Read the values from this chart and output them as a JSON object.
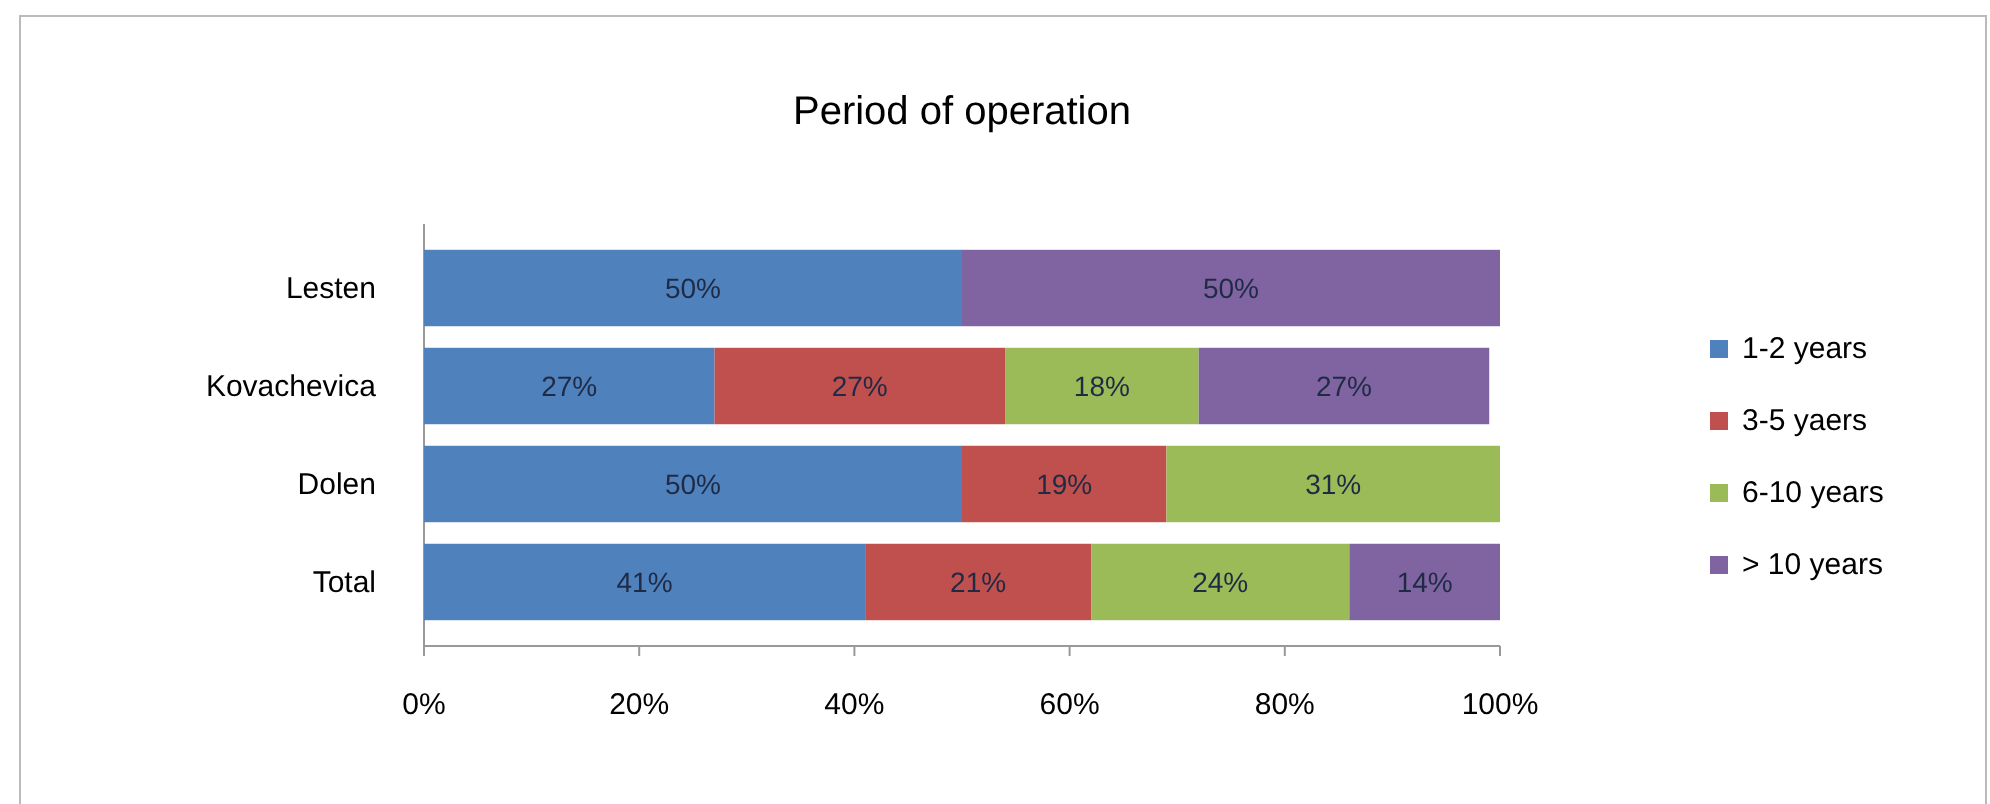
{
  "chart_data": {
    "type": "bar",
    "title": "Period of operation",
    "orientation": "horizontal",
    "stacked": true,
    "legend": "right",
    "categories": [
      "Lesten",
      "Kovachevica",
      "Dolen",
      "Total"
    ],
    "series": [
      {
        "name": "1-2 years",
        "color": "#4f81bd",
        "values": [
          50,
          27,
          50,
          41
        ],
        "value_labels": [
          "50%",
          "27%",
          "50%",
          "41%"
        ]
      },
      {
        "name": "3-5 yaers",
        "color": "#c0504d",
        "values": [
          null,
          27,
          19,
          21
        ],
        "value_labels": [
          null,
          "27%",
          "19%",
          "21%"
        ]
      },
      {
        "name": "6-10 years",
        "color": "#9bbb59",
        "values": [
          null,
          18,
          31,
          24
        ],
        "value_labels": [
          null,
          "18%",
          "31%",
          "24%"
        ]
      },
      {
        "name": "> 10 years",
        "color": "#8064a2",
        "values": [
          50,
          27,
          null,
          14
        ],
        "value_labels": [
          "50%",
          "27%",
          null,
          "14%"
        ]
      }
    ],
    "xlim": [
      0,
      100
    ],
    "xticks": [
      {
        "value": 0,
        "label": "0%"
      },
      {
        "value": 20,
        "label": "20%"
      },
      {
        "value": 40,
        "label": "40%"
      },
      {
        "value": 60,
        "label": "60%"
      },
      {
        "value": 80,
        "label": "80%"
      },
      {
        "value": 100,
        "label": "100%"
      }
    ]
  }
}
